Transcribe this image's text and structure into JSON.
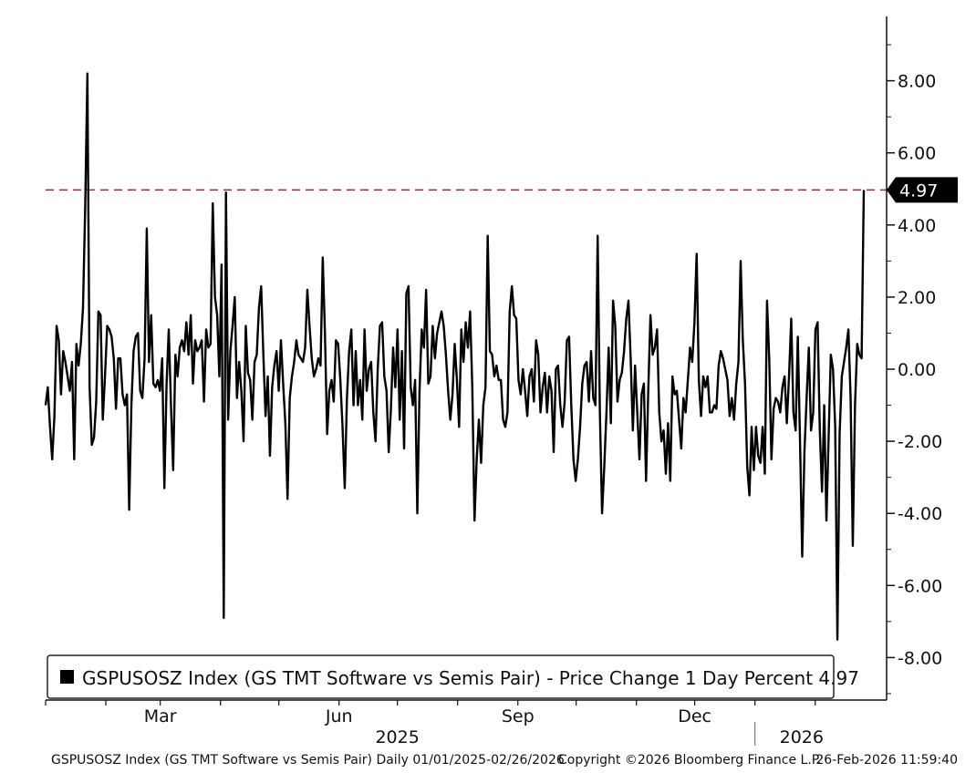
{
  "chart_data": {
    "type": "line",
    "title": "",
    "xlabel": "",
    "ylabel": "",
    "ylim": [
      -9.2,
      9.5
    ],
    "yticks": [
      "8.00",
      "6.00",
      "4.00",
      "2.00",
      "0.00",
      "-2.00",
      "-4.00",
      "-6.00",
      "-8.00"
    ],
    "ytick_values": [
      8,
      6,
      4,
      2,
      0,
      -2,
      -4,
      -6,
      -8
    ],
    "x_range": [
      "2025-01-01",
      "2026-02-26"
    ],
    "month_labels": [
      {
        "label": "Mar",
        "date": "2025-03-01"
      },
      {
        "label": "Jun",
        "date": "2025-06-01"
      },
      {
        "label": "Sep",
        "date": "2025-09-01"
      },
      {
        "label": "Dec",
        "date": "2025-12-01"
      }
    ],
    "year_labels": [
      {
        "label": "2025",
        "date": "2025-07-01"
      },
      {
        "label": "2026",
        "date": "2026-01-25"
      }
    ],
    "reference_line": {
      "value": 4.97,
      "color": "#9b2b2b",
      "style": "dashed"
    },
    "last_value_label": "4.97",
    "series": [
      {
        "name": "GSPUSOSZ Index (GS TMT Software vs Semis Pair) - Price Change 1 Day Percent",
        "color": "#000000",
        "values": [
          -1.0,
          -0.5,
          -1.6,
          -2.5,
          -1.3,
          1.2,
          0.8,
          -0.7,
          0.5,
          0.2,
          -0.2,
          -0.6,
          0.2,
          -2.5,
          0.7,
          0.1,
          0.7,
          1.7,
          4.5,
          8.2,
          -0.5,
          -2.1,
          -1.9,
          -0.9,
          1.6,
          1.5,
          -1.4,
          -0.2,
          1.2,
          1.1,
          0.9,
          0.3,
          -1.1,
          0.3,
          0.3,
          -0.7,
          -1.0,
          -0.7,
          -3.9,
          -1.0,
          0.5,
          0.9,
          1.0,
          -0.6,
          -0.8,
          0.3,
          3.9,
          0.2,
          1.5,
          -0.4,
          -0.5,
          -0.3,
          -0.6,
          0.3,
          -3.3,
          -0.4,
          1.1,
          -1.0,
          -2.8,
          0.4,
          -0.2,
          0.6,
          0.8,
          0.5,
          1.3,
          0.4,
          1.5,
          -0.4,
          0.8,
          0.5,
          0.6,
          0.8,
          -0.9,
          1.1,
          0.6,
          0.7,
          4.6,
          2.0,
          1.5,
          -0.2,
          2.9,
          -6.9,
          4.9,
          -1.4,
          0.5,
          1.2,
          2.0,
          -0.8,
          0.2,
          -0.6,
          -2.0,
          1.2,
          -0.1,
          -0.3,
          -1.4,
          0.2,
          0.4,
          1.7,
          2.3,
          0.4,
          -1.3,
          -0.2,
          -2.4,
          -0.5,
          0.1,
          0.5,
          -0.6,
          0.8,
          -0.4,
          -1.5,
          -3.6,
          -0.8,
          -0.2,
          0.2,
          0.8,
          0.4,
          0.3,
          0.2,
          0.6,
          2.2,
          1.2,
          0.3,
          -0.2,
          0.0,
          0.3,
          0.1,
          3.1,
          1.0,
          -1.8,
          -0.6,
          -0.3,
          -0.9,
          0.8,
          0.7,
          -0.3,
          -1.6,
          -3.3,
          -0.8,
          0.5,
          1.1,
          -1.0,
          0.5,
          -1.0,
          -0.3,
          -1.4,
          1.1,
          -0.6,
          0.0,
          0.2,
          -1.2,
          -2.0,
          0.0,
          1.2,
          1.3,
          -0.2,
          -0.6,
          -2.3,
          -1.1,
          0.6,
          -0.5,
          1.1,
          -1.4,
          0.5,
          -2.2,
          2.1,
          2.3,
          -0.5,
          -1.0,
          -0.3,
          -4.0,
          -0.6,
          1.1,
          0.6,
          2.2,
          -0.4,
          -0.2,
          1.2,
          0.3,
          1.0,
          1.3,
          1.6,
          1.2,
          0.4,
          -0.6,
          -1.4,
          -0.7,
          0.7,
          -0.3,
          -1.6,
          1.1,
          0.2,
          1.3,
          0.6,
          1.6,
          -0.5,
          -4.2,
          -2.5,
          -1.4,
          -2.6,
          -1.0,
          -0.5,
          3.7,
          0.5,
          0.4,
          -0.2,
          0.1,
          -0.3,
          -0.3,
          -1.4,
          -1.6,
          -1.2,
          1.6,
          2.3,
          1.5,
          1.4,
          -0.3,
          -0.7,
          0.0,
          -0.6,
          -1.3,
          -0.2,
          0.0,
          -0.9,
          0.8,
          0.4,
          -1.2,
          -0.5,
          -0.1,
          -1.2,
          -0.2,
          -0.6,
          -2.3,
          0.0,
          0.1,
          -1.0,
          -1.6,
          -0.9,
          0.8,
          0.9,
          -1.0,
          -2.5,
          -3.1,
          -2.5,
          -1.6,
          -0.4,
          0.1,
          0.2,
          -0.9,
          0.5,
          -0.8,
          -1.0,
          3.7,
          -1.2,
          -4.0,
          -2.7,
          -1.2,
          0.6,
          -1.5,
          1.9,
          1.2,
          -0.9,
          -0.3,
          -0.1,
          0.5,
          1.4,
          1.9,
          0.3,
          -1.7,
          0.1,
          -1.2,
          -2.5,
          -0.7,
          -0.4,
          -3.1,
          -0.6,
          1.5,
          0.4,
          0.6,
          1.1,
          -1.2,
          -2.0,
          -1.7,
          -2.9,
          -1.5,
          -3.1,
          -0.2,
          -0.7,
          -0.6,
          -1.4,
          -2.2,
          -0.8,
          -1.2,
          -0.3,
          0.6,
          0.2,
          1.3,
          3.2,
          -0.3,
          -1.3,
          -0.2,
          -0.5,
          -0.2,
          -1.2,
          -1.2,
          -1.0,
          -1.1,
          0.1,
          0.5,
          0.3,
          0.0,
          -0.3,
          -1.3,
          -0.8,
          -1.4,
          -0.4,
          0.2,
          3.0,
          0.8,
          -0.4,
          -2.7,
          -3.5,
          -1.6,
          -2.8,
          -1.6,
          -2.4,
          -2.6,
          -1.6,
          -2.9,
          1.9,
          0.3,
          -2.5,
          -1.1,
          -0.8,
          -0.9,
          -1.2,
          -0.5,
          -0.2,
          -1.5,
          -0.2,
          1.4,
          -1.2,
          -1.7,
          0.9,
          -2.0,
          -5.2,
          -2.3,
          -0.8,
          0.6,
          -1.7,
          -1.2,
          1.1,
          1.3,
          -1.7,
          -3.4,
          -1.0,
          -4.2,
          -1.9,
          0.4,
          0.0,
          -1.6,
          -7.5,
          -1.8,
          -0.2,
          0.2,
          0.6,
          1.1,
          -0.8,
          -4.9,
          -1.0,
          0.7,
          0.4,
          0.3,
          4.97
        ]
      }
    ],
    "legend": {
      "text": "GSPUSOSZ Index (GS TMT Software vs Semis Pair) - Price Change 1 Day Percent 4.97",
      "position": "bottom-left"
    },
    "footer": {
      "description": "GSPUSOSZ Index (GS TMT Software vs Semis Pair) Daily 01/01/2025-02/26/2026",
      "copyright": "Copyright ©2026 Bloomberg Finance L.P.",
      "timestamp": "26-Feb-2026 11:59:40"
    }
  }
}
